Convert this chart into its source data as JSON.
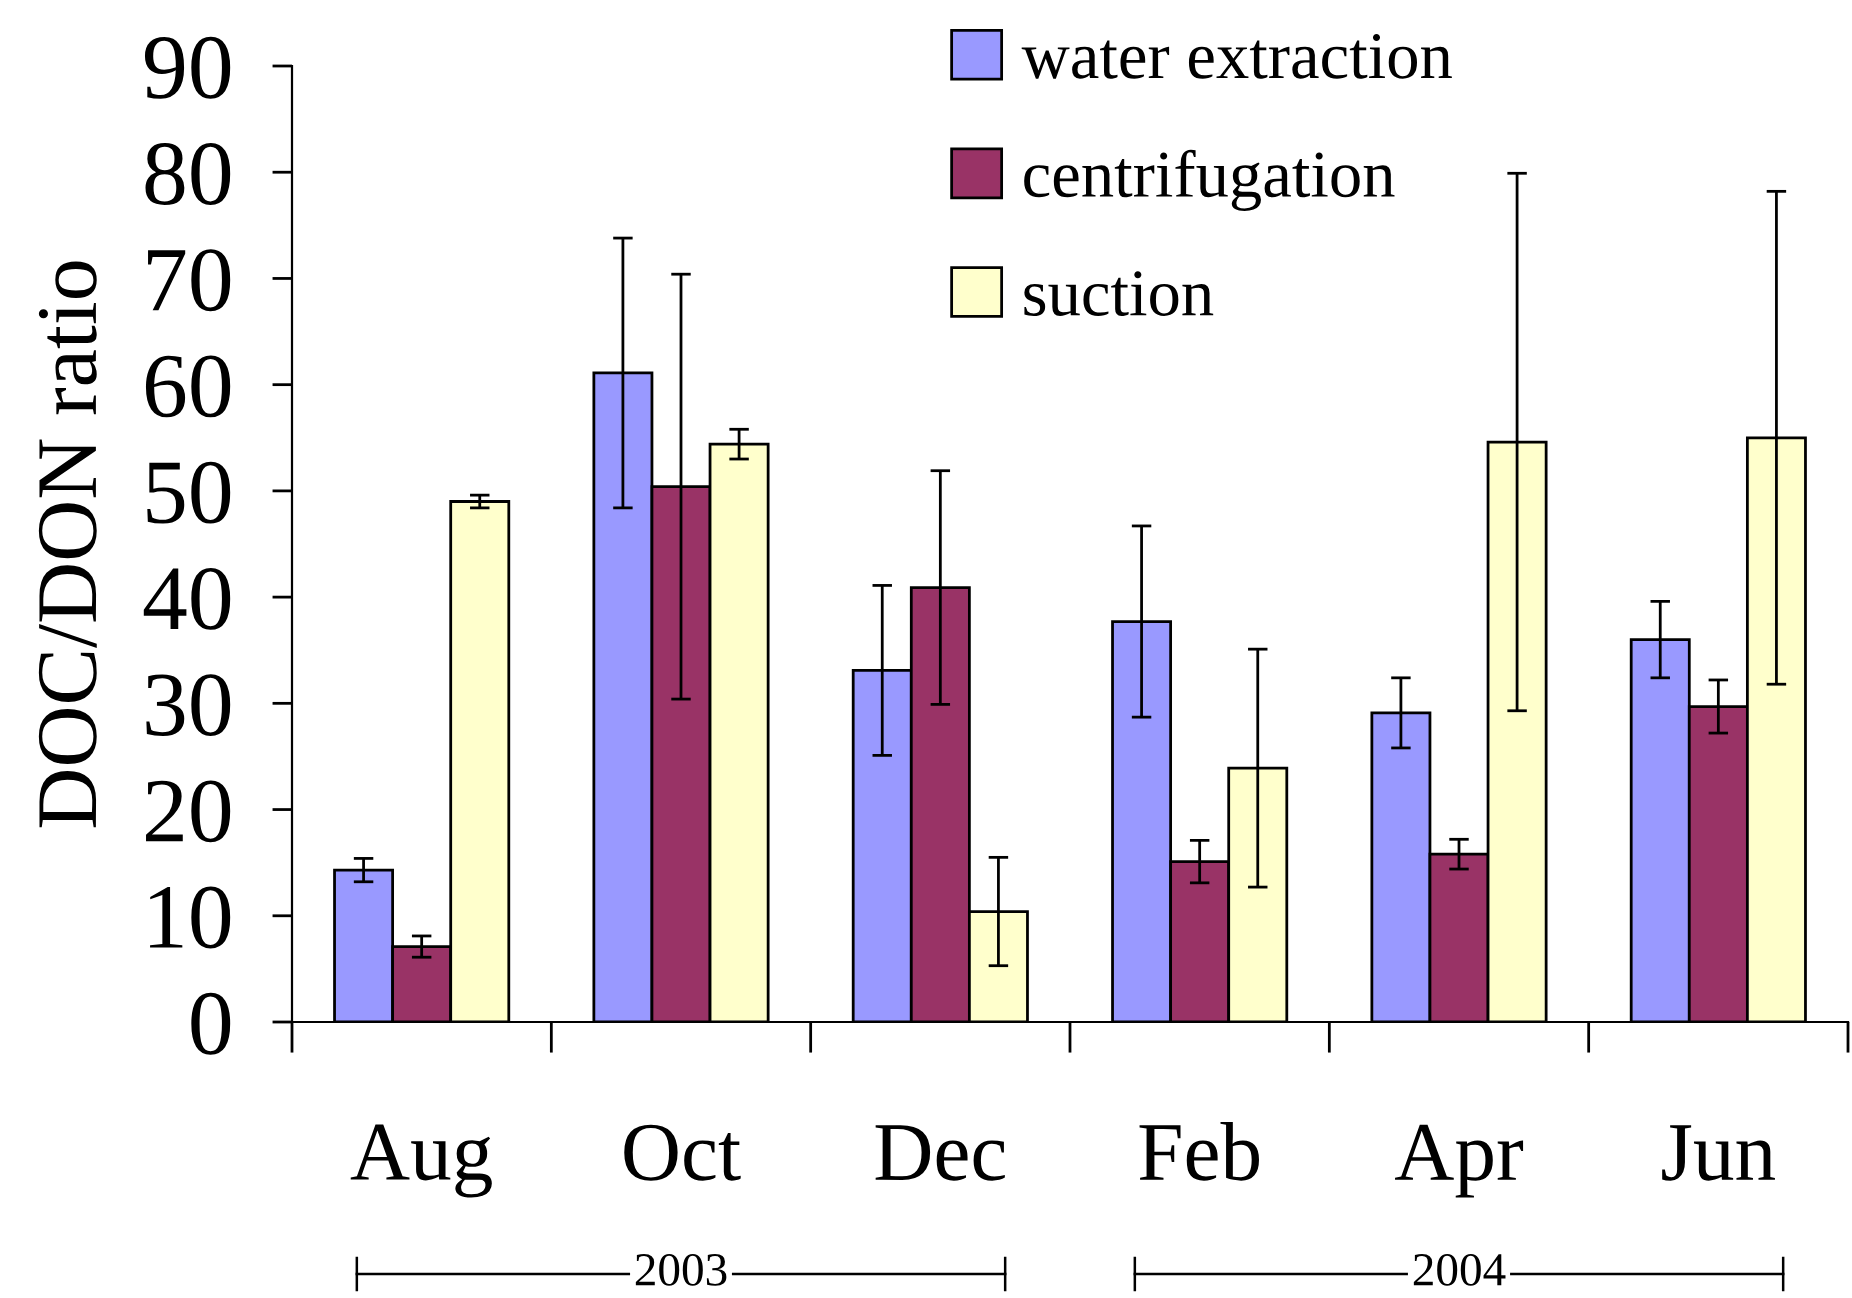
{
  "chart_data": {
    "type": "bar",
    "ylabel": "DOC/DON ratio",
    "categories": [
      "Aug",
      "Oct",
      "Dec",
      "Feb",
      "Apr",
      "Jun"
    ],
    "series": [
      {
        "name": "water extraction",
        "color": "#9999ff",
        "values": [
          14.3,
          61.1,
          33.1,
          37.7,
          29.1,
          36.0
        ],
        "errors": [
          1.1,
          12.7,
          8.0,
          9.0,
          3.3,
          3.6
        ]
      },
      {
        "name": "centrifugation",
        "color": "#993366",
        "values": [
          7.1,
          50.4,
          40.9,
          15.1,
          15.8,
          29.7
        ],
        "errors": [
          1.0,
          20.0,
          11.0,
          2.0,
          1.4,
          2.5
        ]
      },
      {
        "name": "suction",
        "color": "#ffffcc",
        "values": [
          49.0,
          54.4,
          10.4,
          23.9,
          54.6,
          55.0
        ],
        "errors": [
          0.6,
          1.4,
          5.1,
          11.2,
          25.3,
          23.2
        ]
      }
    ],
    "ylim": [
      0,
      90
    ],
    "yticks": [
      0,
      10,
      20,
      30,
      40,
      50,
      60,
      70,
      80,
      90
    ],
    "legend": "top",
    "annotations": [
      "2003",
      "2004"
    ]
  }
}
